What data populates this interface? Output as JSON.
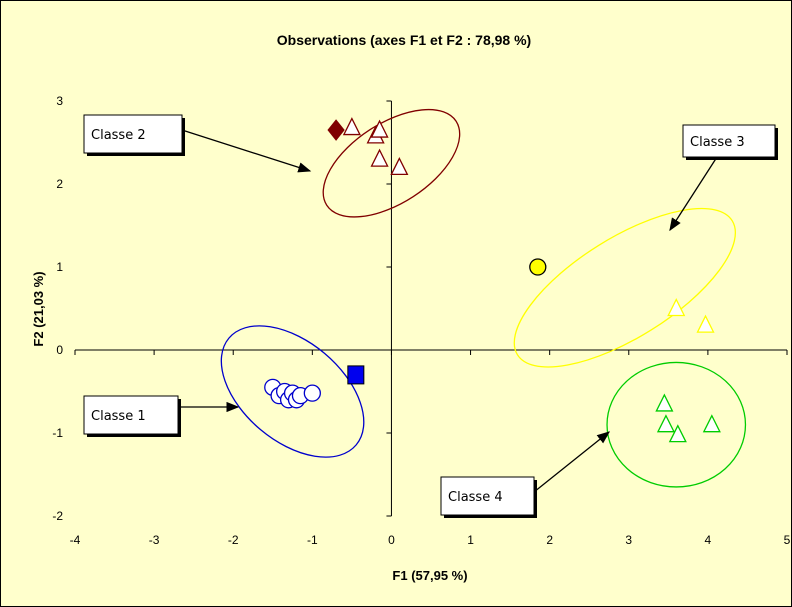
{
  "chart_data": {
    "type": "scatter",
    "title": "Observations (axes F1 et F2 : 78,98 %)",
    "xlabel": "F1 (57,95 %)",
    "ylabel": "F2 (21,03 %)",
    "xlim": [
      -4,
      5
    ],
    "ylim": [
      -2,
      3
    ],
    "xticks": [
      "-4",
      "-3",
      "-2",
      "-1",
      "0",
      "1",
      "2",
      "3",
      "4",
      "5"
    ],
    "yticks": [
      "-2",
      "-1",
      "0",
      "1",
      "2",
      "3"
    ],
    "grid": false,
    "classes": [
      {
        "name": "Classe 1",
        "color": "#0000cc",
        "observations": [
          [
            -1.5,
            -0.45
          ],
          [
            -1.42,
            -0.55
          ],
          [
            -1.35,
            -0.5
          ],
          [
            -1.3,
            -0.6
          ],
          [
            -1.25,
            -0.52
          ],
          [
            -1.2,
            -0.6
          ],
          [
            -1.15,
            -0.55
          ],
          [
            -1.0,
            -0.52
          ]
        ],
        "centroid": [
          -0.45,
          -0.3
        ],
        "centroid_marker": "square",
        "ellipse": {
          "cx": -1.25,
          "cy": -0.5,
          "rx": 2.1,
          "ry": 0.6,
          "angle_deg": 40
        }
      },
      {
        "name": "Classe 2",
        "color": "#800000",
        "observations": [
          [
            -0.5,
            2.68
          ],
          [
            -0.2,
            2.58
          ],
          [
            -0.15,
            2.65
          ],
          [
            -0.15,
            2.3
          ],
          [
            0.1,
            2.2
          ]
        ],
        "centroid": [
          -0.7,
          2.65
        ],
        "centroid_marker": "diamond",
        "ellipse": {
          "cx": 0.0,
          "cy": 2.25,
          "rx": 1.95,
          "ry": 0.48,
          "angle_deg": -33
        }
      },
      {
        "name": "Classe 3",
        "color": "#ffff00",
        "observations": [
          [
            3.6,
            0.5
          ],
          [
            3.97,
            0.3
          ]
        ],
        "centroid": [
          1.85,
          1.0
        ],
        "centroid_marker": "circle",
        "ellipse": {
          "cx": 2.95,
          "cy": 0.75,
          "rx": 3.2,
          "ry": 0.6,
          "angle_deg": -32
        }
      },
      {
        "name": "Classe 4",
        "color": "#00cc00",
        "observations": [
          [
            3.45,
            -0.65
          ],
          [
            3.47,
            -0.9
          ],
          [
            3.62,
            -1.02
          ],
          [
            4.05,
            -0.9
          ]
        ],
        "centroid": null,
        "centroid_marker": null,
        "ellipse": {
          "cx": 3.6,
          "cy": -0.9,
          "rx": 1.75,
          "ry": 0.75,
          "angle_deg": 0
        }
      }
    ]
  }
}
